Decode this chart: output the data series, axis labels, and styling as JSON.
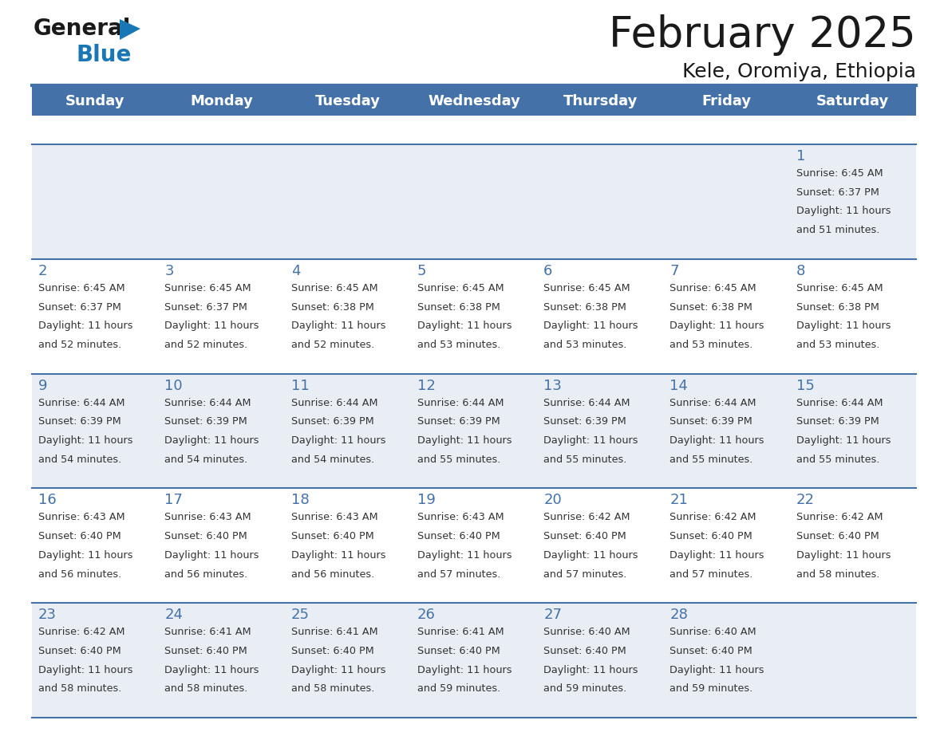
{
  "title": "February 2025",
  "subtitle": "Kele, Oromiya, Ethiopia",
  "header_bg_color": "#4472a8",
  "header_text_color": "#ffffff",
  "cell_bg_color_odd": "#e8eef4",
  "cell_bg_color_even": "#ffffff",
  "border_color": "#4472a8",
  "day_names": [
    "Sunday",
    "Monday",
    "Tuesday",
    "Wednesday",
    "Thursday",
    "Friday",
    "Saturday"
  ],
  "title_color": "#1a1a1a",
  "subtitle_color": "#1a1a1a",
  "day_number_color": "#4472a8",
  "info_text_color": "#333333",
  "logo_general_color": "#1a1a1a",
  "logo_blue_color": "#1a77b5",
  "logo_triangle_color": "#1a77b5",
  "calendar_data": [
    [
      null,
      null,
      null,
      null,
      null,
      null,
      {
        "day": 1,
        "sunrise": "6:45 AM",
        "sunset": "6:37 PM",
        "daylight": "11 hours and 51 minutes."
      }
    ],
    [
      {
        "day": 2,
        "sunrise": "6:45 AM",
        "sunset": "6:37 PM",
        "daylight": "11 hours and 52 minutes."
      },
      {
        "day": 3,
        "sunrise": "6:45 AM",
        "sunset": "6:37 PM",
        "daylight": "11 hours and 52 minutes."
      },
      {
        "day": 4,
        "sunrise": "6:45 AM",
        "sunset": "6:38 PM",
        "daylight": "11 hours and 52 minutes."
      },
      {
        "day": 5,
        "sunrise": "6:45 AM",
        "sunset": "6:38 PM",
        "daylight": "11 hours and 53 minutes."
      },
      {
        "day": 6,
        "sunrise": "6:45 AM",
        "sunset": "6:38 PM",
        "daylight": "11 hours and 53 minutes."
      },
      {
        "day": 7,
        "sunrise": "6:45 AM",
        "sunset": "6:38 PM",
        "daylight": "11 hours and 53 minutes."
      },
      {
        "day": 8,
        "sunrise": "6:45 AM",
        "sunset": "6:38 PM",
        "daylight": "11 hours and 53 minutes."
      }
    ],
    [
      {
        "day": 9,
        "sunrise": "6:44 AM",
        "sunset": "6:39 PM",
        "daylight": "11 hours and 54 minutes."
      },
      {
        "day": 10,
        "sunrise": "6:44 AM",
        "sunset": "6:39 PM",
        "daylight": "11 hours and 54 minutes."
      },
      {
        "day": 11,
        "sunrise": "6:44 AM",
        "sunset": "6:39 PM",
        "daylight": "11 hours and 54 minutes."
      },
      {
        "day": 12,
        "sunrise": "6:44 AM",
        "sunset": "6:39 PM",
        "daylight": "11 hours and 55 minutes."
      },
      {
        "day": 13,
        "sunrise": "6:44 AM",
        "sunset": "6:39 PM",
        "daylight": "11 hours and 55 minutes."
      },
      {
        "day": 14,
        "sunrise": "6:44 AM",
        "sunset": "6:39 PM",
        "daylight": "11 hours and 55 minutes."
      },
      {
        "day": 15,
        "sunrise": "6:44 AM",
        "sunset": "6:39 PM",
        "daylight": "11 hours and 55 minutes."
      }
    ],
    [
      {
        "day": 16,
        "sunrise": "6:43 AM",
        "sunset": "6:40 PM",
        "daylight": "11 hours and 56 minutes."
      },
      {
        "day": 17,
        "sunrise": "6:43 AM",
        "sunset": "6:40 PM",
        "daylight": "11 hours and 56 minutes."
      },
      {
        "day": 18,
        "sunrise": "6:43 AM",
        "sunset": "6:40 PM",
        "daylight": "11 hours and 56 minutes."
      },
      {
        "day": 19,
        "sunrise": "6:43 AM",
        "sunset": "6:40 PM",
        "daylight": "11 hours and 57 minutes."
      },
      {
        "day": 20,
        "sunrise": "6:42 AM",
        "sunset": "6:40 PM",
        "daylight": "11 hours and 57 minutes."
      },
      {
        "day": 21,
        "sunrise": "6:42 AM",
        "sunset": "6:40 PM",
        "daylight": "11 hours and 57 minutes."
      },
      {
        "day": 22,
        "sunrise": "6:42 AM",
        "sunset": "6:40 PM",
        "daylight": "11 hours and 58 minutes."
      }
    ],
    [
      {
        "day": 23,
        "sunrise": "6:42 AM",
        "sunset": "6:40 PM",
        "daylight": "11 hours and 58 minutes."
      },
      {
        "day": 24,
        "sunrise": "6:41 AM",
        "sunset": "6:40 PM",
        "daylight": "11 hours and 58 minutes."
      },
      {
        "day": 25,
        "sunrise": "6:41 AM",
        "sunset": "6:40 PM",
        "daylight": "11 hours and 58 minutes."
      },
      {
        "day": 26,
        "sunrise": "6:41 AM",
        "sunset": "6:40 PM",
        "daylight": "11 hours and 59 minutes."
      },
      {
        "day": 27,
        "sunrise": "6:40 AM",
        "sunset": "6:40 PM",
        "daylight": "11 hours and 59 minutes."
      },
      {
        "day": 28,
        "sunrise": "6:40 AM",
        "sunset": "6:40 PM",
        "daylight": "11 hours and 59 minutes."
      },
      null
    ]
  ]
}
